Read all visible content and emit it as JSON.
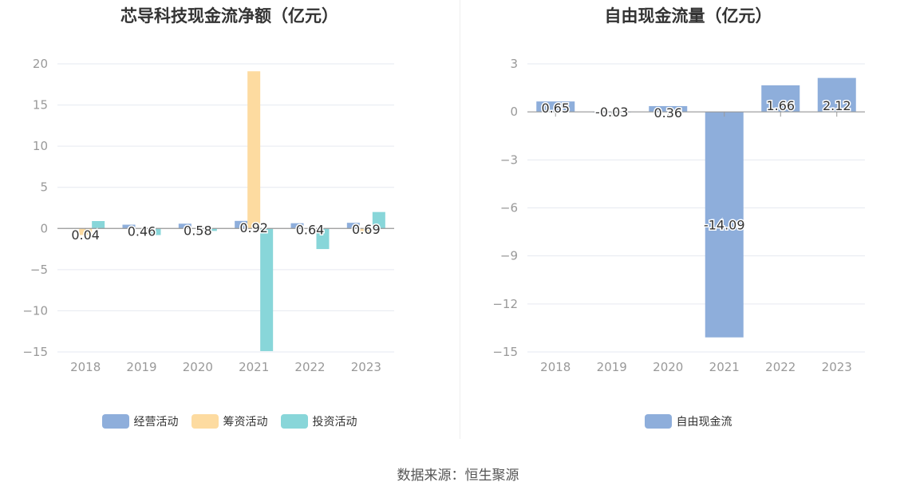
{
  "source_label": "数据来源：恒生聚源",
  "chart_data": [
    {
      "type": "bar",
      "title": "芯导科技现金流净额（亿元）",
      "categories": [
        "2018",
        "2019",
        "2020",
        "2021",
        "2022",
        "2023"
      ],
      "ylim": [
        -15,
        20
      ],
      "yticks": [
        20,
        15,
        10,
        5,
        0,
        -5,
        -10,
        -15
      ],
      "grid": true,
      "legend_position": "bottom",
      "series": [
        {
          "name": "经营活动",
          "color": "#8eaedb",
          "values": [
            0.04,
            0.46,
            0.58,
            0.92,
            0.64,
            0.69
          ],
          "show_labels": true
        },
        {
          "name": "筹资活动",
          "color": "#fddba0",
          "values": [
            -0.8,
            0,
            0,
            19.1,
            0,
            -0.5
          ],
          "show_labels": false
        },
        {
          "name": "投资活动",
          "color": "#88d6d9",
          "values": [
            0.9,
            -0.8,
            -0.3,
            -14.9,
            -2.5,
            2.0
          ],
          "show_labels": false
        }
      ]
    },
    {
      "type": "bar",
      "title": "自由现金流量（亿元）",
      "categories": [
        "2018",
        "2019",
        "2020",
        "2021",
        "2022",
        "2023"
      ],
      "ylim": [
        -15,
        3
      ],
      "yticks": [
        3,
        0,
        -3,
        -6,
        -9,
        -12,
        -15
      ],
      "grid": true,
      "legend_position": "bottom",
      "series": [
        {
          "name": "自由现金流",
          "color": "#8eaedb",
          "values": [
            0.65,
            -0.03,
            0.36,
            -14.09,
            1.66,
            2.12
          ],
          "show_labels": true
        }
      ]
    }
  ]
}
